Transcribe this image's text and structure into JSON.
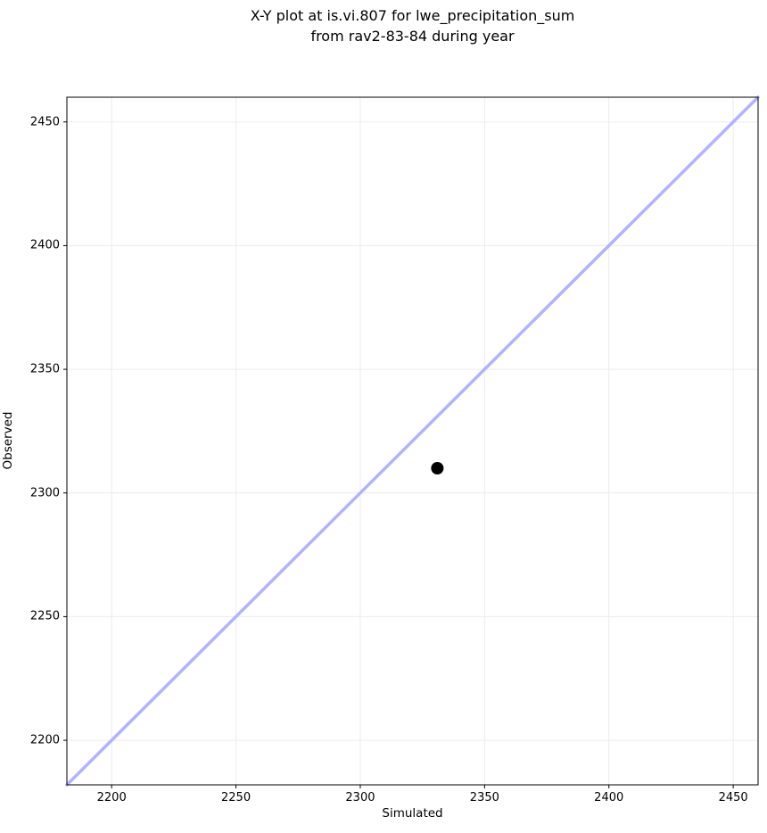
{
  "figure": {
    "title_lines": [
      "X-Y plot at is.vi.807 for lwe_precipitation_sum",
      "from rav2-83-84 during year"
    ],
    "xlabel": "Simulated",
    "ylabel": "Observed"
  },
  "chart_data": {
    "type": "scatter",
    "title": "X-Y plot at is.vi.807 for lwe_precipitation_sum\nfrom rav2-83-84 during year",
    "xlabel": "Simulated",
    "ylabel": "Observed",
    "xlim": [
      2182,
      2460
    ],
    "ylim": [
      2182,
      2460
    ],
    "xticks": [
      2200,
      2250,
      2300,
      2350,
      2400,
      2450
    ],
    "yticks": [
      2200,
      2250,
      2300,
      2350,
      2400,
      2450
    ],
    "grid": true,
    "legend": "none",
    "background": "#ffffff",
    "grid_color": "#ececf0",
    "spine_color": "#000000",
    "tick_color": "#000000",
    "text_color": "#000000",
    "series": [
      {
        "name": "identity-line",
        "type": "line",
        "color": "#b2b2ff",
        "stroke_width": 3.5,
        "points": [
          {
            "x": 2182,
            "y": 2182
          },
          {
            "x": 2460,
            "y": 2460
          }
        ]
      },
      {
        "name": "observed-vs-simulated",
        "type": "scatter",
        "color": "#000000",
        "marker_radius": 7,
        "points": [
          {
            "x": 2331,
            "y": 2310
          }
        ]
      }
    ]
  }
}
